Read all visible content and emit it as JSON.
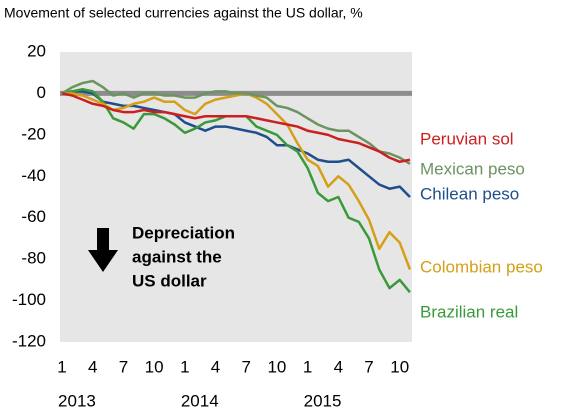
{
  "chart_data": {
    "type": "line",
    "title": "Movement of selected currencies against the US dollar, %",
    "x": [
      0,
      1,
      2,
      3,
      4,
      5,
      6,
      7,
      8,
      9,
      10,
      11,
      12,
      13,
      14,
      15,
      16,
      17,
      18,
      19,
      20,
      21,
      22,
      23,
      24,
      25,
      26,
      27,
      28,
      29,
      30,
      31,
      32,
      33,
      34
    ],
    "xlim": [
      -0.2,
      34.2
    ],
    "xticks": [
      {
        "value": 0,
        "label": "1"
      },
      {
        "value": 3,
        "label": "4"
      },
      {
        "value": 6,
        "label": "7"
      },
      {
        "value": 9,
        "label": "10"
      },
      {
        "value": 12,
        "label": "1"
      },
      {
        "value": 15,
        "label": "4"
      },
      {
        "value": 18,
        "label": "7"
      },
      {
        "value": 21,
        "label": "10"
      },
      {
        "value": 24,
        "label": "1"
      },
      {
        "value": 27,
        "label": "4"
      },
      {
        "value": 30,
        "label": "7"
      },
      {
        "value": 33,
        "label": "10"
      }
    ],
    "year_labels": [
      {
        "value": 0,
        "label": "2013"
      },
      {
        "value": 12,
        "label": "2014"
      },
      {
        "value": 24,
        "label": "2015"
      }
    ],
    "ylim": [
      -120,
      20
    ],
    "yticks": [
      -120,
      -100,
      -80,
      -60,
      -40,
      -20,
      0,
      20
    ],
    "grid": false,
    "annotation": [
      "Depreciation",
      "against the",
      "US dollar"
    ],
    "series": [
      {
        "name": "Peruvian sol",
        "color": "#cc1f1f",
        "values": [
          0,
          -1,
          -3,
          -5,
          -6,
          -8,
          -9,
          -9,
          -8,
          -9,
          -9,
          -10,
          -11,
          -12,
          -11,
          -11,
          -11,
          -11,
          -11,
          -12,
          -13,
          -14,
          -15,
          -16,
          -18,
          -19,
          -20,
          -22,
          -23,
          -24,
          -26,
          -28,
          -31,
          -33,
          -32
        ]
      },
      {
        "name": "Mexican peso",
        "color": "#6b9460",
        "values": [
          0,
          3,
          5,
          6,
          3,
          -1,
          0,
          -2,
          0,
          0,
          -1,
          -1,
          -2,
          -2,
          0,
          1,
          1,
          0,
          0,
          -1,
          -2,
          -6,
          -7,
          -9,
          -12,
          -15,
          -17,
          -18,
          -18,
          -21,
          -24,
          -28,
          -29,
          -31,
          -34
        ]
      },
      {
        "name": "Chilean peso",
        "color": "#1f4e8c",
        "values": [
          0,
          1,
          1,
          0,
          -4,
          -5,
          -6,
          -6,
          -7,
          -8,
          -9,
          -10,
          -14,
          -16,
          -18,
          -16,
          -16,
          -17,
          -18,
          -19,
          -21,
          -25,
          -25,
          -27,
          -29,
          -32,
          -33,
          -33,
          -32,
          -36,
          -40,
          -44,
          -46,
          -45,
          -50
        ]
      },
      {
        "name": "Colombian peso",
        "color": "#d4a017",
        "values": [
          0,
          0,
          -1,
          -3,
          -5,
          -8,
          -7,
          -5,
          -4,
          -2,
          -4,
          -4,
          -8,
          -10,
          -5,
          -3,
          -2,
          -1,
          0,
          -2,
          -5,
          -10,
          -15,
          -24,
          -32,
          -35,
          -45,
          -40,
          -44,
          -52,
          -61,
          -75,
          -67,
          -72,
          -85
        ]
      },
      {
        "name": "Brazilian real",
        "color": "#3a9a3a",
        "values": [
          0,
          1,
          2,
          1,
          -4,
          -12,
          -14,
          -17,
          -10,
          -10,
          -12,
          -15,
          -19,
          -17,
          -14,
          -13,
          -11,
          -11,
          -11,
          -16,
          -18,
          -20,
          -25,
          -28,
          -36,
          -48,
          -52,
          -50,
          -60,
          -62,
          -70,
          -85,
          -94,
          -90,
          -96
        ]
      }
    ]
  }
}
